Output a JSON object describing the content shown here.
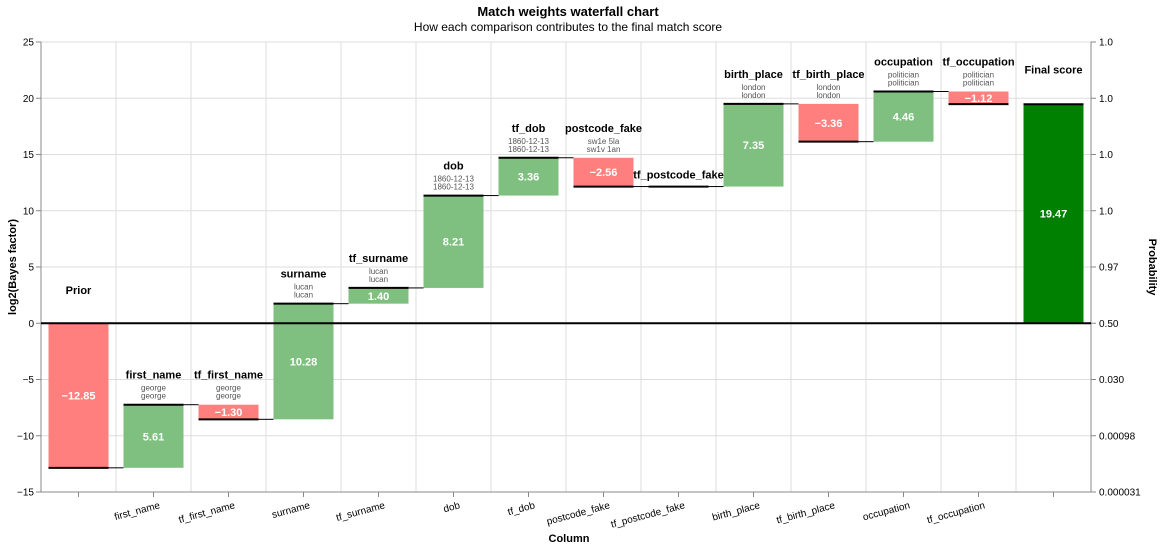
{
  "chart_data": {
    "type": "bar",
    "title": "Match weights waterfall chart",
    "subtitle": "How each comparison contributes to the final match score",
    "xlabel": "Column",
    "ylabel": "log2(Bayes factor)",
    "ylabel_right": "Probability",
    "ylim": [
      -15,
      25
    ],
    "yticks": [
      -15,
      -10,
      -5,
      0,
      5,
      10,
      15,
      20,
      25
    ],
    "yticklabels": [
      "−15",
      "−10",
      "−5",
      "0",
      "5",
      "10",
      "15",
      "20",
      "25"
    ],
    "right_ticks": [
      "0.000031",
      "0.00098",
      "0.030",
      "0.50",
      "0.97",
      "1.0",
      "1.0",
      "1.0",
      "1.0"
    ],
    "grid": true,
    "colors": {
      "positive": "#7fc080",
      "negative": "#ff7f7f",
      "final": "#008000",
      "bar_edge": "#000000"
    },
    "bars": [
      {
        "name": "Prior",
        "tick": "",
        "value": -12.85,
        "label": "−12.85",
        "details": []
      },
      {
        "name": "first_name",
        "tick": "first_name",
        "value": 5.61,
        "label": "5.61",
        "details": [
          "george",
          "george"
        ]
      },
      {
        "name": "tf_first_name",
        "tick": "tf_first_name",
        "value": -1.3,
        "label": "−1.30",
        "details": [
          "george",
          "george"
        ]
      },
      {
        "name": "surname",
        "tick": "surname",
        "value": 10.28,
        "label": "10.28",
        "details": [
          "lucan",
          "lucan"
        ]
      },
      {
        "name": "tf_surname",
        "tick": "tf_surname",
        "value": 1.4,
        "label": "1.40",
        "details": [
          "lucan",
          "lucan"
        ]
      },
      {
        "name": "dob",
        "tick": "dob",
        "value": 8.21,
        "label": "8.21",
        "details": [
          "1860-12-13",
          "1860-12-13"
        ]
      },
      {
        "name": "tf_dob",
        "tick": "tf_dob",
        "value": 3.36,
        "label": "3.36",
        "details": [
          "1860-12-13",
          "1860-12-13"
        ]
      },
      {
        "name": "postcode_fake",
        "tick": "postcode_fake",
        "value": -2.56,
        "label": "−2.56",
        "details": [
          "sw1e 5la",
          "sw1v 1an"
        ]
      },
      {
        "name": "tf_postcode_fake",
        "tick": "tf_postcode_fake",
        "value": 0.0,
        "label": "",
        "details": []
      },
      {
        "name": "birth_place",
        "tick": "birth_place",
        "value": 7.35,
        "label": "7.35",
        "details": [
          "london",
          "london"
        ]
      },
      {
        "name": "tf_birth_place",
        "tick": "tf_birth_place",
        "value": -3.36,
        "label": "−3.36",
        "details": [
          "london",
          "london"
        ]
      },
      {
        "name": "occupation",
        "tick": "occupation",
        "value": 4.46,
        "label": "4.46",
        "details": [
          "politician",
          "politician"
        ]
      },
      {
        "name": "tf_occupation",
        "tick": "tf_occupation",
        "value": -1.12,
        "label": "−1.12",
        "details": [
          "politician",
          "politician"
        ]
      },
      {
        "name": "Final score",
        "tick": "",
        "value": 19.47,
        "label": "19.47",
        "details": [],
        "final": true
      }
    ]
  }
}
